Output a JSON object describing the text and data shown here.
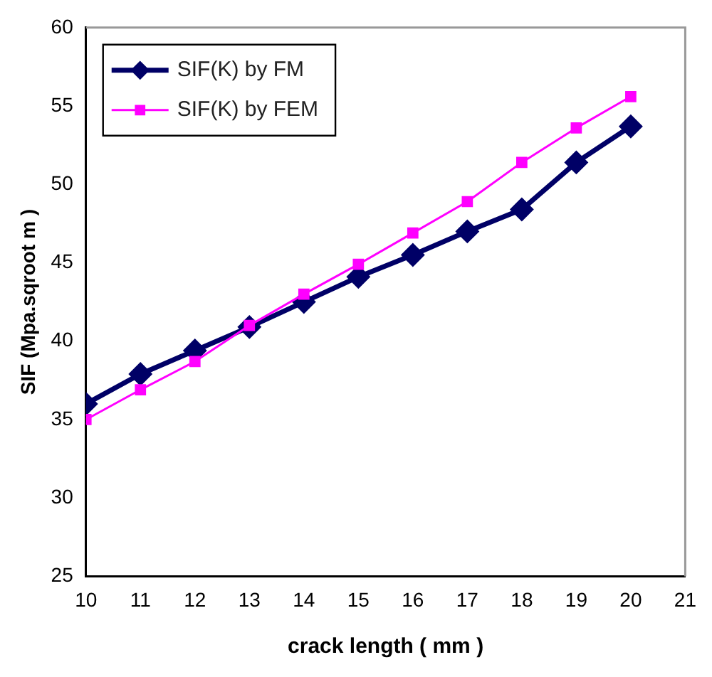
{
  "chart_data": {
    "type": "line",
    "xlabel": "crack length ( mm )",
    "ylabel": "SIF (Mpa.sqroot m )",
    "x": [
      10,
      11,
      12,
      13,
      14,
      15,
      16,
      17,
      18,
      19,
      20
    ],
    "series": [
      {
        "name": "SIF(K) by FM",
        "color": "#000066",
        "marker": "diamond",
        "values": [
          36,
          37.9,
          39.4,
          40.9,
          42.5,
          44.1,
          45.5,
          47,
          48.4,
          51.4,
          53.7
        ]
      },
      {
        "name": "SIF(K) by FEM",
        "color": "#ff00ff",
        "marker": "square",
        "values": [
          35,
          36.9,
          38.7,
          41,
          43,
          44.9,
          46.9,
          48.9,
          51.4,
          53.6,
          55.6
        ]
      }
    ],
    "xlim": [
      10,
      21
    ],
    "xticks": [
      10,
      11,
      12,
      13,
      14,
      15,
      16,
      17,
      18,
      19,
      20,
      21
    ],
    "ylim": [
      25,
      60
    ],
    "yticks": [
      25,
      30,
      35,
      40,
      45,
      50,
      55,
      60
    ],
    "grid": false,
    "legend": "top left",
    "line_style": "solid"
  }
}
